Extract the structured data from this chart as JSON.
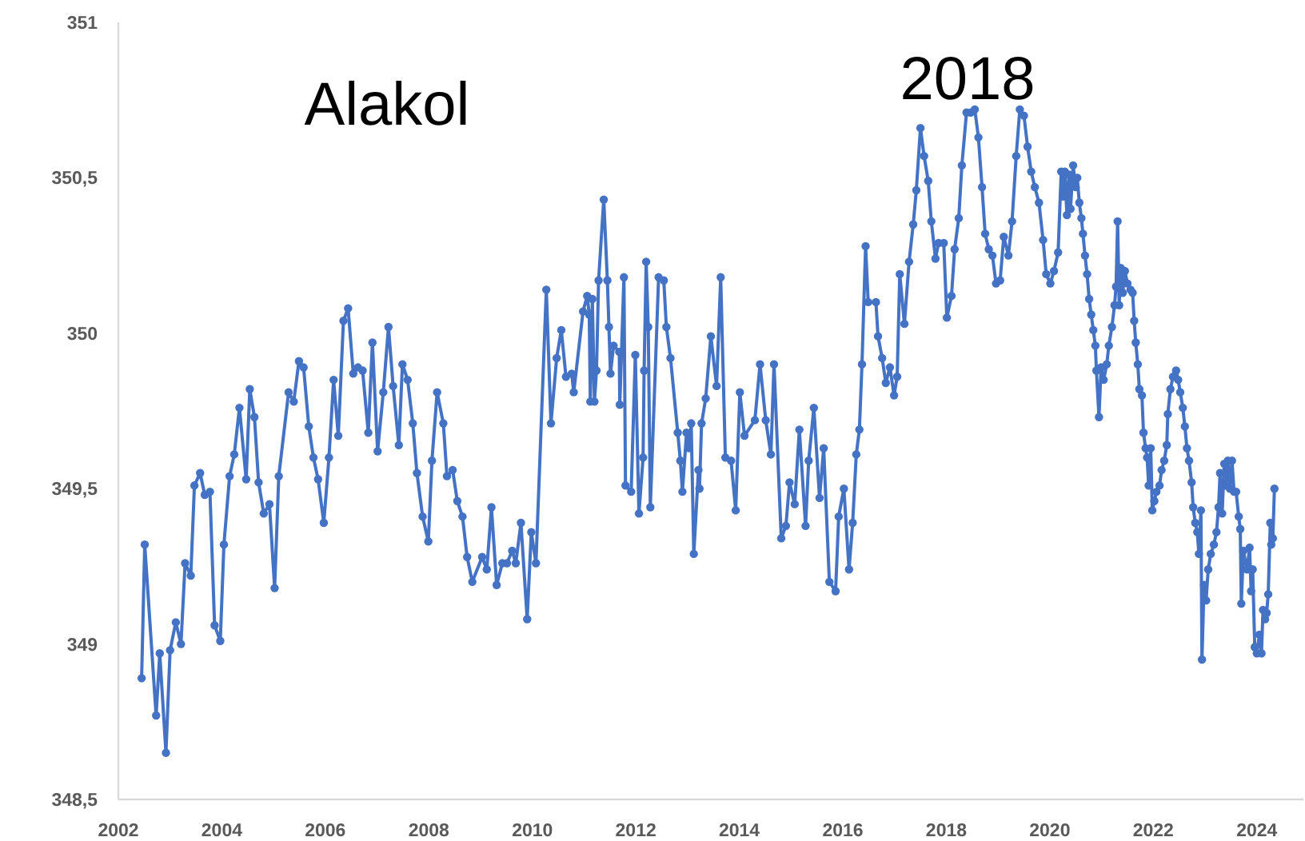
{
  "chart_data": {
    "type": "line",
    "title": "Alakol",
    "annotations": [
      "2018"
    ],
    "xlim": [
      2002,
      2024.9
    ],
    "xticks": [
      2002,
      2004,
      2006,
      2008,
      2010,
      2012,
      2014,
      2016,
      2018,
      2020,
      2022,
      2024
    ],
    "ylim": [
      348.5,
      351
    ],
    "yticks": [
      {
        "value": 348.5,
        "label": "348,5"
      },
      349,
      {
        "value": 349.5,
        "label": "349,5"
      },
      350,
      {
        "value": 350.5,
        "label": "350,5"
      },
      351
    ],
    "grid": false,
    "marker": "circle",
    "line_style": "solid",
    "series": [
      {
        "color": "#4472c4",
        "x": [
          2002.45,
          2002.51,
          2002.73,
          2002.8,
          2002.92,
          2003.0,
          2003.11,
          2003.21,
          2003.29,
          2003.4,
          2003.47,
          2003.58,
          2003.67,
          2003.77,
          2003.86,
          2003.97,
          2004.04,
          2004.15,
          2004.24,
          2004.34,
          2004.47,
          2004.54,
          2004.63,
          2004.71,
          2004.81,
          2004.92,
          2005.02,
          2005.1,
          2005.29,
          2005.39,
          2005.49,
          2005.58,
          2005.68,
          2005.77,
          2005.86,
          2005.97,
          2006.07,
          2006.16,
          2006.25,
          2006.35,
          2006.44,
          2006.54,
          2006.63,
          2006.72,
          2006.83,
          2006.91,
          2007.01,
          2007.12,
          2007.22,
          2007.31,
          2007.42,
          2007.49,
          2007.59,
          2007.69,
          2007.77,
          2007.88,
          2007.99,
          2008.06,
          2008.16,
          2008.28,
          2008.35,
          2008.46,
          2008.55,
          2008.65,
          2008.74,
          2008.84,
          2009.03,
          2009.12,
          2009.21,
          2009.31,
          2009.42,
          2009.51,
          2009.61,
          2009.68,
          2009.78,
          2009.9,
          2009.98,
          2010.07,
          2010.27,
          2010.36,
          2010.47,
          2010.56,
          2010.65,
          2010.76,
          2010.8,
          2010.98,
          2011.06,
          2011.1,
          2011.12,
          2011.16,
          2011.2,
          2011.24,
          2011.28,
          2011.38,
          2011.45,
          2011.48,
          2011.51,
          2011.57,
          2011.68,
          2011.69,
          2011.77,
          2011.8,
          2011.91,
          2011.99,
          2012.06,
          2012.14,
          2012.16,
          2012.2,
          2012.24,
          2012.28,
          2012.44,
          2012.54,
          2012.59,
          2012.67,
          2012.81,
          2012.86,
          2012.9,
          2012.98,
          2013.03,
          2013.07,
          2013.12,
          2013.21,
          2013.23,
          2013.27,
          2013.35,
          2013.45,
          2013.56,
          2013.64,
          2013.73,
          2013.84,
          2013.93,
          2014.01,
          2014.1,
          2014.3,
          2014.4,
          2014.51,
          2014.61,
          2014.67,
          2014.81,
          2014.9,
          2014.97,
          2015.07,
          2015.16,
          2015.28,
          2015.34,
          2015.44,
          2015.55,
          2015.63,
          2015.74,
          2015.86,
          2015.92,
          2016.02,
          2016.12,
          2016.19,
          2016.26,
          2016.32,
          2016.37,
          2016.44,
          2016.49,
          2016.64,
          2016.68,
          2016.76,
          2016.83,
          2016.91,
          2016.99,
          2017.05,
          2017.1,
          2017.19,
          2017.28,
          2017.36,
          2017.42,
          2017.5,
          2017.57,
          2017.65,
          2017.71,
          2017.79,
          2017.85,
          2017.95,
          2018.01,
          2018.1,
          2018.16,
          2018.24,
          2018.3,
          2018.39,
          2018.47,
          2018.55,
          2018.62,
          2018.69,
          2018.75,
          2018.82,
          2018.89,
          2018.96,
          2019.04,
          2019.11,
          2019.2,
          2019.27,
          2019.35,
          2019.42,
          2019.5,
          2019.57,
          2019.64,
          2019.71,
          2019.79,
          2019.87,
          2019.93,
          2020.01,
          2020.08,
          2020.16,
          2020.22,
          2020.25,
          2020.29,
          2020.33,
          2020.37,
          2020.4,
          2020.45,
          2020.5,
          2020.53,
          2020.57,
          2020.61,
          2020.64,
          2020.68,
          2020.72,
          2020.76,
          2020.8,
          2020.84,
          2020.88,
          2020.9,
          2020.95,
          2020.99,
          2021.04,
          2021.1,
          2021.14,
          2021.2,
          2021.25,
          2021.28,
          2021.31,
          2021.34,
          2021.37,
          2021.41,
          2021.45,
          2021.5,
          2021.56,
          2021.6,
          2021.63,
          2021.66,
          2021.7,
          2021.73,
          2021.78,
          2021.81,
          2021.85,
          2021.88,
          2021.91,
          2021.95,
          2021.98,
          2022.02,
          2022.06,
          2022.12,
          2022.16,
          2022.21,
          2022.26,
          2022.28,
          2022.33,
          2022.38,
          2022.44,
          2022.48,
          2022.52,
          2022.57,
          2022.61,
          2022.65,
          2022.69,
          2022.74,
          2022.77,
          2022.81,
          2022.85,
          2022.88,
          2022.92,
          2022.94,
          2022.98,
          2023.02,
          2023.06,
          2023.11,
          2023.17,
          2023.22,
          2023.26,
          2023.29,
          2023.33,
          2023.37,
          2023.4,
          2023.44,
          2023.48,
          2023.52,
          2023.56,
          2023.6,
          2023.65,
          2023.68,
          2023.7,
          2023.74,
          2023.81,
          2023.86,
          2023.89,
          2023.92,
          2023.96,
          2024.0,
          2024.05,
          2024.09,
          2024.12,
          2024.16,
          2024.19,
          2024.22,
          2024.26,
          2024.28,
          2024.31,
          2024.34
        ],
        "values": [
          348.89,
          349.32,
          348.77,
          348.97,
          348.65,
          348.98,
          349.07,
          349.0,
          349.26,
          349.22,
          349.51,
          349.55,
          349.48,
          349.49,
          349.06,
          349.01,
          349.32,
          349.54,
          349.61,
          349.76,
          349.53,
          349.82,
          349.73,
          349.52,
          349.42,
          349.45,
          349.18,
          349.54,
          349.81,
          349.78,
          349.91,
          349.89,
          349.7,
          349.6,
          349.53,
          349.39,
          349.6,
          349.85,
          349.67,
          350.04,
          350.08,
          349.87,
          349.89,
          349.88,
          349.68,
          349.97,
          349.62,
          349.81,
          350.02,
          349.83,
          349.64,
          349.9,
          349.85,
          349.71,
          349.55,
          349.41,
          349.33,
          349.59,
          349.81,
          349.71,
          349.54,
          349.56,
          349.46,
          349.41,
          349.28,
          349.2,
          349.28,
          349.24,
          349.44,
          349.19,
          349.26,
          349.26,
          349.3,
          349.26,
          349.39,
          349.08,
          349.36,
          349.26,
          350.14,
          349.71,
          349.92,
          350.01,
          349.86,
          349.87,
          349.81,
          350.07,
          350.12,
          350.06,
          349.78,
          350.11,
          349.78,
          349.88,
          350.17,
          350.43,
          350.17,
          350.02,
          349.87,
          349.96,
          349.94,
          349.77,
          350.18,
          349.51,
          349.49,
          349.93,
          349.42,
          349.6,
          349.88,
          350.23,
          350.02,
          349.44,
          350.18,
          350.17,
          350.02,
          349.92,
          349.68,
          349.59,
          349.49,
          349.68,
          349.63,
          349.71,
          349.29,
          349.56,
          349.5,
          349.71,
          349.79,
          349.99,
          349.83,
          350.18,
          349.6,
          349.59,
          349.43,
          349.81,
          349.67,
          349.72,
          349.9,
          349.72,
          349.61,
          349.9,
          349.34,
          349.38,
          349.52,
          349.45,
          349.69,
          349.38,
          349.59,
          349.76,
          349.47,
          349.63,
          349.2,
          349.17,
          349.41,
          349.5,
          349.24,
          349.39,
          349.61,
          349.69,
          349.9,
          350.28,
          350.1,
          350.1,
          349.99,
          349.92,
          349.84,
          349.89,
          349.8,
          349.86,
          350.19,
          350.03,
          350.23,
          350.35,
          350.46,
          350.66,
          350.57,
          350.49,
          350.36,
          350.24,
          350.29,
          350.29,
          350.05,
          350.12,
          350.27,
          350.37,
          350.54,
          350.71,
          350.71,
          350.72,
          350.63,
          350.47,
          350.32,
          350.27,
          350.25,
          350.16,
          350.17,
          350.31,
          350.25,
          350.36,
          350.57,
          350.72,
          350.7,
          350.6,
          350.52,
          350.47,
          350.42,
          350.3,
          350.19,
          350.16,
          350.2,
          350.26,
          350.52,
          350.44,
          350.52,
          350.38,
          350.51,
          350.4,
          350.54,
          350.47,
          350.5,
          350.42,
          350.37,
          350.32,
          350.25,
          350.19,
          350.11,
          350.06,
          350.01,
          349.96,
          349.88,
          349.73,
          349.89,
          349.85,
          349.9,
          349.96,
          350.02,
          350.09,
          350.15,
          350.36,
          350.09,
          350.21,
          350.13,
          350.2,
          350.16,
          350.14,
          350.13,
          350.04,
          349.97,
          349.9,
          349.82,
          349.8,
          349.68,
          349.63,
          349.6,
          349.51,
          349.63,
          349.43,
          349.46,
          349.49,
          349.51,
          349.56,
          349.59,
          349.64,
          349.74,
          349.82,
          349.86,
          349.88,
          349.85,
          349.81,
          349.76,
          349.7,
          349.63,
          349.59,
          349.52,
          349.44,
          349.39,
          349.36,
          349.29,
          349.43,
          348.95,
          349.19,
          349.14,
          349.24,
          349.29,
          349.32,
          349.36,
          349.44,
          349.55,
          349.42,
          349.58,
          349.51,
          349.59,
          349.5,
          349.59,
          349.49,
          349.49,
          349.41,
          349.37,
          349.13,
          349.3,
          349.24,
          349.31,
          349.17,
          349.24,
          348.99,
          348.97,
          349.03,
          348.97,
          349.11,
          349.08,
          349.1,
          349.16,
          349.39,
          349.32,
          349.34,
          349.5
        ]
      }
    ]
  }
}
